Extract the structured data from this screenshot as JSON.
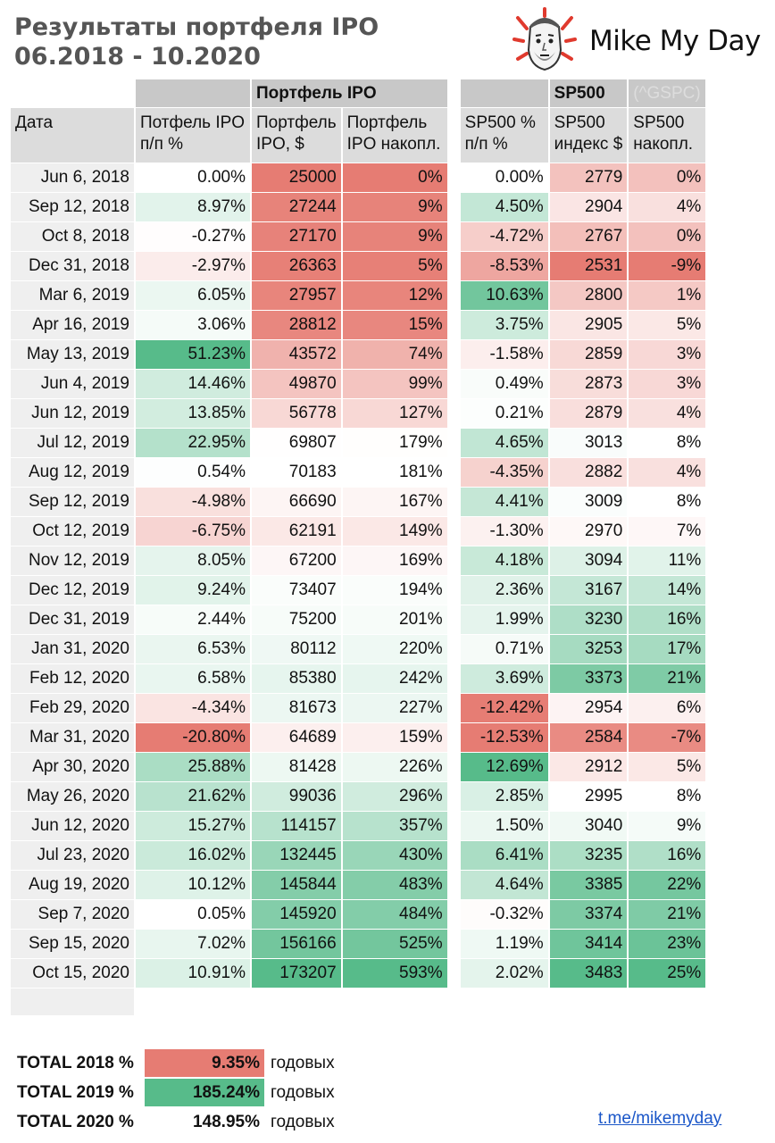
{
  "title_line1": "Результаты портфеля IPO",
  "title_line2": "06.2018 - 10.2020",
  "brand": {
    "name": "Mike My Day",
    "logo_icon": "cartoon-face-logo",
    "accent": "#e03a2e"
  },
  "table": {
    "group_ipo": "Портфель IPO",
    "group_sp": "SP500",
    "group_sp_ticker": "(^GSPC)",
    "columns": [
      [
        "Дата"
      ],
      [
        "Потфель IPO",
        "п/п %"
      ],
      [
        "Портфель",
        "IPO, $"
      ],
      [
        "Портфель",
        "IPO накопл."
      ],
      [
        "SP500 %",
        "п/п %"
      ],
      [
        "SP500",
        "индекс $"
      ],
      [
        "SP500",
        "накопл."
      ]
    ],
    "rows": [
      {
        "date": "Jun 6, 2018",
        "ipo_pct": "0.00%",
        "ipo_usd": "25000",
        "ipo_cum": "0%",
        "sp_pct": "0.00%",
        "sp_idx": "2779",
        "sp_cum": "0%"
      },
      {
        "date": "Sep 12, 2018",
        "ipo_pct": "8.97%",
        "ipo_usd": "27244",
        "ipo_cum": "9%",
        "sp_pct": "4.50%",
        "sp_idx": "2904",
        "sp_cum": "4%"
      },
      {
        "date": "Oct 8, 2018",
        "ipo_pct": "-0.27%",
        "ipo_usd": "27170",
        "ipo_cum": "9%",
        "sp_pct": "-4.72%",
        "sp_idx": "2767",
        "sp_cum": "0%"
      },
      {
        "date": "Dec 31, 2018",
        "ipo_pct": "-2.97%",
        "ipo_usd": "26363",
        "ipo_cum": "5%",
        "sp_pct": "-8.53%",
        "sp_idx": "2531",
        "sp_cum": "-9%"
      },
      {
        "date": "Mar 6, 2019",
        "ipo_pct": "6.05%",
        "ipo_usd": "27957",
        "ipo_cum": "12%",
        "sp_pct": "10.63%",
        "sp_idx": "2800",
        "sp_cum": "1%"
      },
      {
        "date": "Apr 16, 2019",
        "ipo_pct": "3.06%",
        "ipo_usd": "28812",
        "ipo_cum": "15%",
        "sp_pct": "3.75%",
        "sp_idx": "2905",
        "sp_cum": "5%"
      },
      {
        "date": "May 13, 2019",
        "ipo_pct": "51.23%",
        "ipo_usd": "43572",
        "ipo_cum": "74%",
        "sp_pct": "-1.58%",
        "sp_idx": "2859",
        "sp_cum": "3%"
      },
      {
        "date": "Jun 4, 2019",
        "ipo_pct": "14.46%",
        "ipo_usd": "49870",
        "ipo_cum": "99%",
        "sp_pct": "0.49%",
        "sp_idx": "2873",
        "sp_cum": "3%"
      },
      {
        "date": "Jun 12, 2019",
        "ipo_pct": "13.85%",
        "ipo_usd": "56778",
        "ipo_cum": "127%",
        "sp_pct": "0.21%",
        "sp_idx": "2879",
        "sp_cum": "4%"
      },
      {
        "date": "Jul 12, 2019",
        "ipo_pct": "22.95%",
        "ipo_usd": "69807",
        "ipo_cum": "179%",
        "sp_pct": "4.65%",
        "sp_idx": "3013",
        "sp_cum": "8%"
      },
      {
        "date": "Aug 12, 2019",
        "ipo_pct": "0.54%",
        "ipo_usd": "70183",
        "ipo_cum": "181%",
        "sp_pct": "-4.35%",
        "sp_idx": "2882",
        "sp_cum": "4%"
      },
      {
        "date": "Sep 12, 2019",
        "ipo_pct": "-4.98%",
        "ipo_usd": "66690",
        "ipo_cum": "167%",
        "sp_pct": "4.41%",
        "sp_idx": "3009",
        "sp_cum": "8%"
      },
      {
        "date": "Oct 12, 2019",
        "ipo_pct": "-6.75%",
        "ipo_usd": "62191",
        "ipo_cum": "149%",
        "sp_pct": "-1.30%",
        "sp_idx": "2970",
        "sp_cum": "7%"
      },
      {
        "date": "Nov 12, 2019",
        "ipo_pct": "8.05%",
        "ipo_usd": "67200",
        "ipo_cum": "169%",
        "sp_pct": "4.18%",
        "sp_idx": "3094",
        "sp_cum": "11%"
      },
      {
        "date": "Dec 12, 2019",
        "ipo_pct": "9.24%",
        "ipo_usd": "73407",
        "ipo_cum": "194%",
        "sp_pct": "2.36%",
        "sp_idx": "3167",
        "sp_cum": "14%"
      },
      {
        "date": "Dec 31, 2019",
        "ipo_pct": "2.44%",
        "ipo_usd": "75200",
        "ipo_cum": "201%",
        "sp_pct": "1.99%",
        "sp_idx": "3230",
        "sp_cum": "16%"
      },
      {
        "date": "Jan 31, 2020",
        "ipo_pct": "6.53%",
        "ipo_usd": "80112",
        "ipo_cum": "220%",
        "sp_pct": "0.71%",
        "sp_idx": "3253",
        "sp_cum": "17%"
      },
      {
        "date": "Feb 12, 2020",
        "ipo_pct": "6.58%",
        "ipo_usd": "85380",
        "ipo_cum": "242%",
        "sp_pct": "3.69%",
        "sp_idx": "3373",
        "sp_cum": "21%"
      },
      {
        "date": "Feb 29, 2020",
        "ipo_pct": "-4.34%",
        "ipo_usd": "81673",
        "ipo_cum": "227%",
        "sp_pct": "-12.42%",
        "sp_idx": "2954",
        "sp_cum": "6%"
      },
      {
        "date": "Mar 31, 2020",
        "ipo_pct": "-20.80%",
        "ipo_usd": "64689",
        "ipo_cum": "159%",
        "sp_pct": "-12.53%",
        "sp_idx": "2584",
        "sp_cum": "-7%"
      },
      {
        "date": "Apr 30, 2020",
        "ipo_pct": "25.88%",
        "ipo_usd": "81428",
        "ipo_cum": "226%",
        "sp_pct": "12.69%",
        "sp_idx": "2912",
        "sp_cum": "5%"
      },
      {
        "date": "May 26, 2020",
        "ipo_pct": "21.62%",
        "ipo_usd": "99036",
        "ipo_cum": "296%",
        "sp_pct": "2.85%",
        "sp_idx": "2995",
        "sp_cum": "8%"
      },
      {
        "date": "Jun 12, 2020",
        "ipo_pct": "15.27%",
        "ipo_usd": "114157",
        "ipo_cum": "357%",
        "sp_pct": "1.50%",
        "sp_idx": "3040",
        "sp_cum": "9%"
      },
      {
        "date": "Jul 23, 2020",
        "ipo_pct": "16.02%",
        "ipo_usd": "132445",
        "ipo_cum": "430%",
        "sp_pct": "6.41%",
        "sp_idx": "3235",
        "sp_cum": "16%"
      },
      {
        "date": "Aug 19, 2020",
        "ipo_pct": "10.12%",
        "ipo_usd": "145844",
        "ipo_cum": "483%",
        "sp_pct": "4.64%",
        "sp_idx": "3385",
        "sp_cum": "22%"
      },
      {
        "date": "Sep 7, 2020",
        "ipo_pct": "0.05%",
        "ipo_usd": "145920",
        "ipo_cum": "484%",
        "sp_pct": "-0.32%",
        "sp_idx": "3374",
        "sp_cum": "21%"
      },
      {
        "date": "Sep 15, 2020",
        "ipo_pct": "7.02%",
        "ipo_usd": "156166",
        "ipo_cum": "525%",
        "sp_pct": "1.19%",
        "sp_idx": "3414",
        "sp_cum": "23%"
      },
      {
        "date": "Oct 15, 2020",
        "ipo_pct": "10.91%",
        "ipo_usd": "173207",
        "ipo_cum": "593%",
        "sp_pct": "2.02%",
        "sp_idx": "3483",
        "sp_cum": "25%"
      }
    ]
  },
  "totals": [
    {
      "label": "TOTAL 2018 %",
      "value": "9.35%",
      "suffix": "годовых"
    },
    {
      "label": "TOTAL 2019 %",
      "value": "185.24%",
      "suffix": "годовых"
    },
    {
      "label": "TOTAL 2020 %",
      "value": "148.95%",
      "suffix": "годовых"
    }
  ],
  "link": "t.me/mikemyday",
  "colors": {
    "positive": "#57bb8a",
    "negative": "#e67c73",
    "neutral": "#ffffff"
  }
}
